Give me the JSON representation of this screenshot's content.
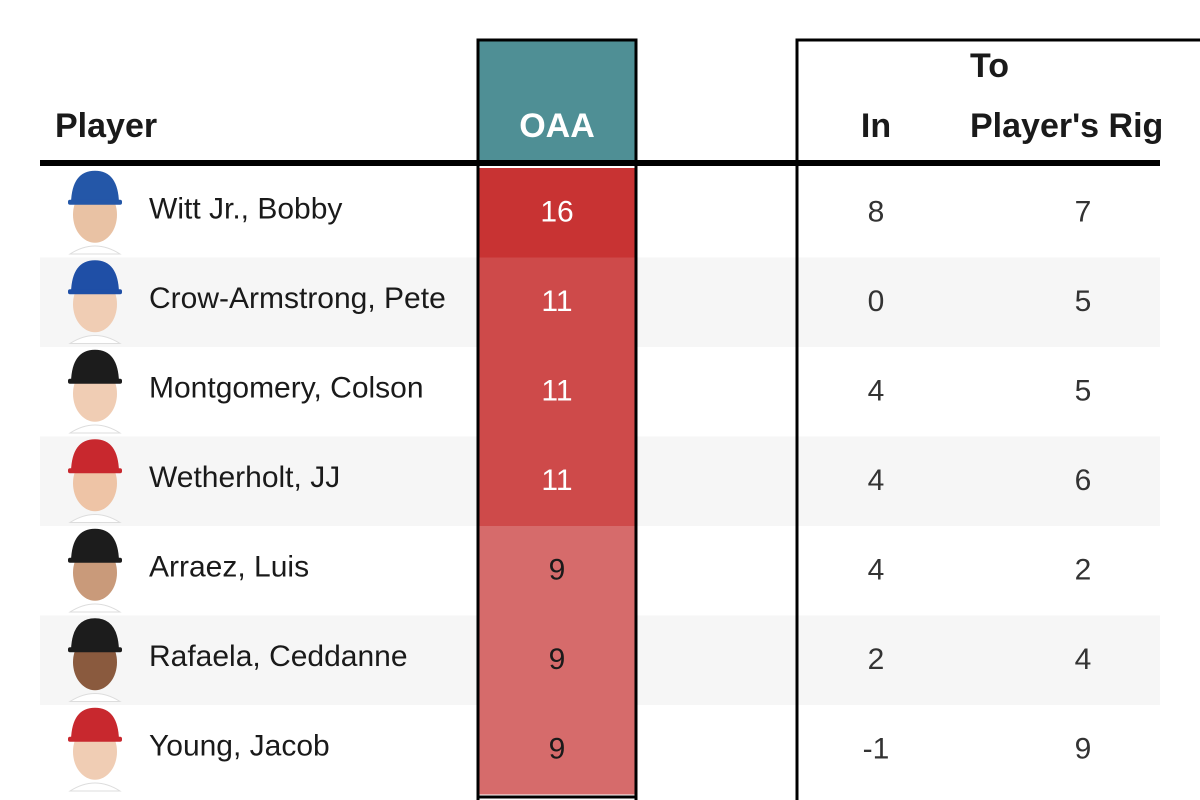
{
  "table": {
    "header": {
      "player": "Player",
      "oaa": "OAA",
      "group": "To",
      "in": "In",
      "right": "Player's Rig"
    },
    "rows": [
      {
        "name": "Witt Jr., Bobby",
        "oaa": 16,
        "oaa_color": "#c83333",
        "in": 8,
        "right": 7
      },
      {
        "name": "Crow-Armstrong, Pete",
        "oaa": 11,
        "oaa_color": "#ce4a4a",
        "in": 0,
        "right": 5
      },
      {
        "name": "Montgomery, Colson",
        "oaa": 11,
        "oaa_color": "#ce4a4a",
        "in": 4,
        "right": 5
      },
      {
        "name": "Wetherholt, JJ",
        "oaa": 11,
        "oaa_color": "#ce4a4a",
        "in": 4,
        "right": 6
      },
      {
        "name": "Arraez, Luis",
        "oaa": 9,
        "oaa_color": "#d66b6b",
        "in": 4,
        "right": 2
      },
      {
        "name": "Rafaela, Ceddanne",
        "oaa": 9,
        "oaa_color": "#d66b6b",
        "in": 2,
        "right": 4
      },
      {
        "name": "Young, Jacob",
        "oaa": 9,
        "oaa_color": "#d66b6b",
        "in": -1,
        "right": 9
      }
    ]
  }
}
